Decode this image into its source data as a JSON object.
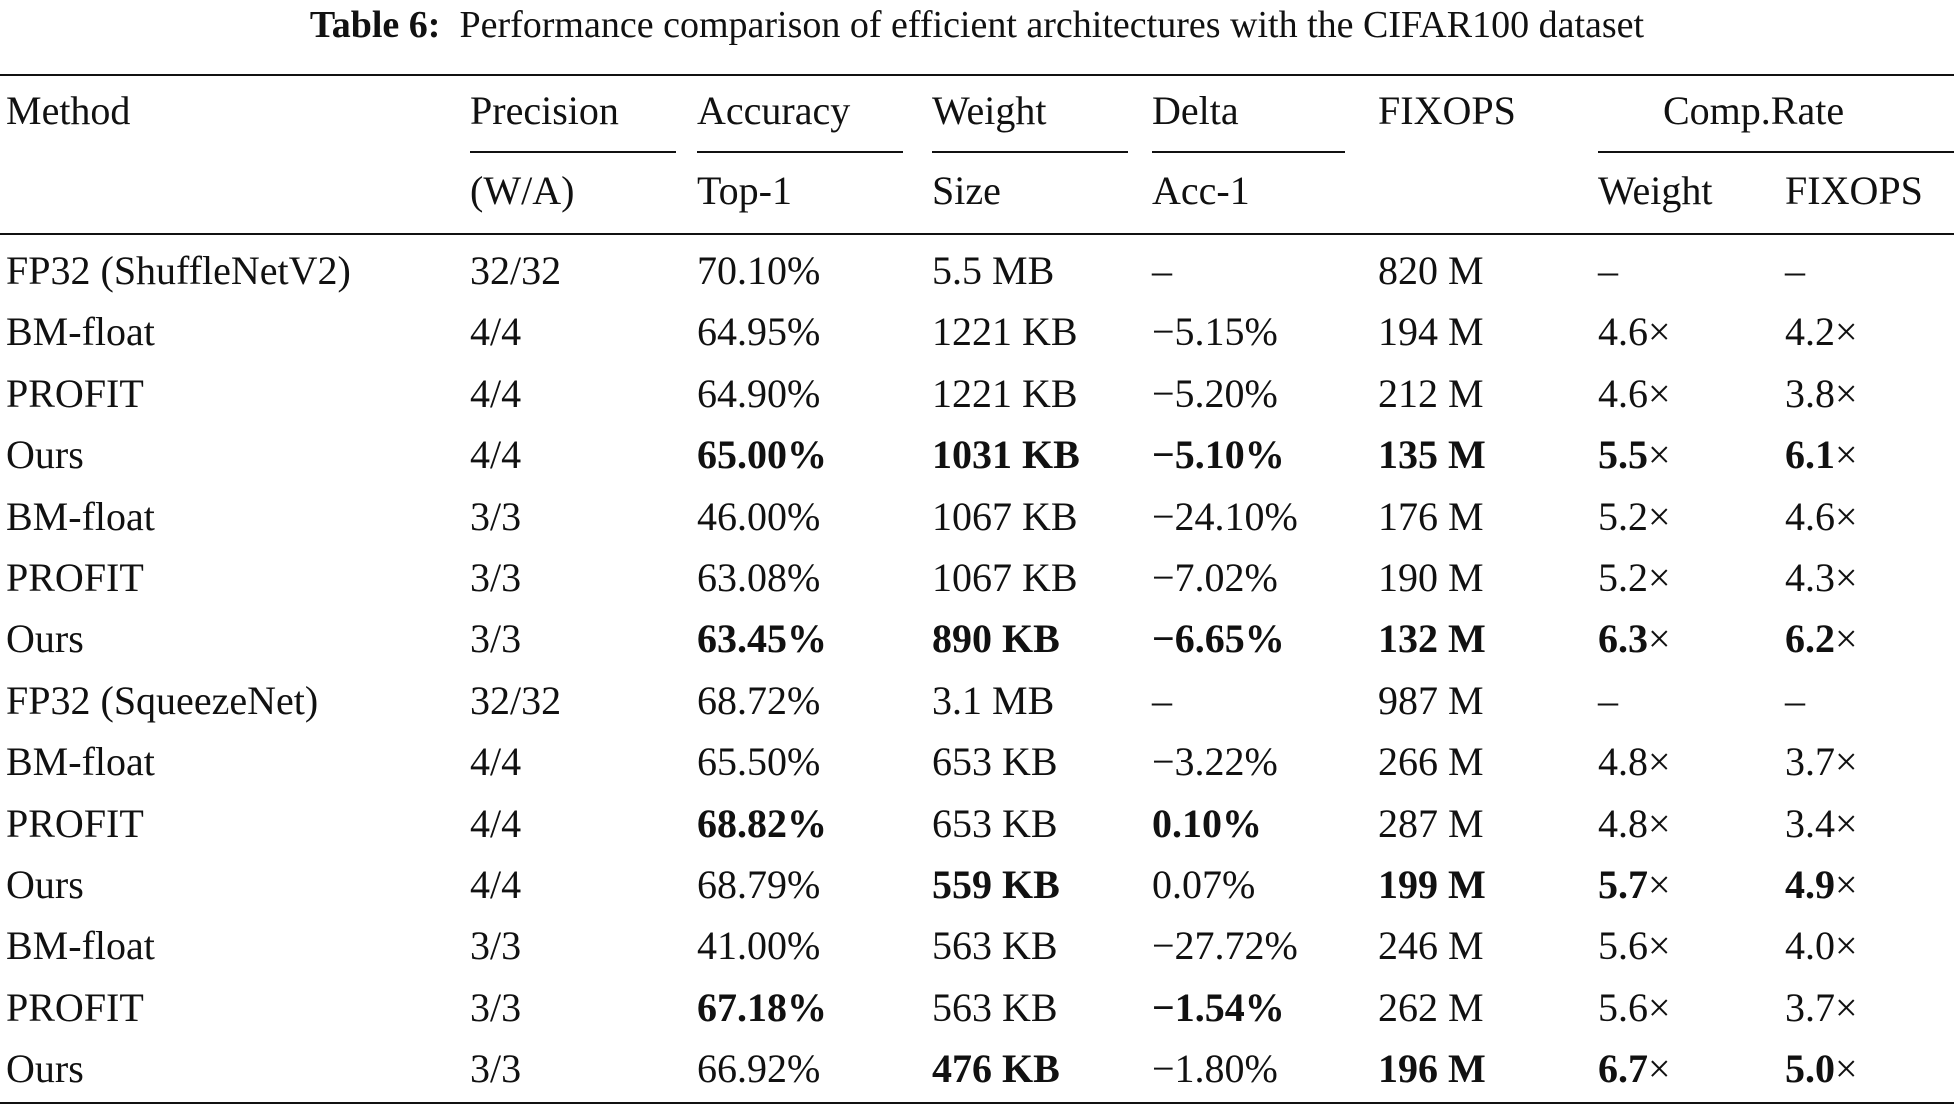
{
  "caption": {
    "label": "Table 6:",
    "text": "Performance comparison of efficient architectures with the CIFAR100 dataset"
  },
  "header": {
    "row1": [
      "Method",
      "Precision",
      "Accuracy",
      "Weight",
      "Delta",
      "FIXOPS",
      "Comp.Rate"
    ],
    "row2": [
      "(W/A)",
      "Top-1",
      "Size",
      "Acc-1",
      "Weight",
      "FIXOPS"
    ]
  },
  "rows": [
    {
      "method": "FP32 (ShuffleNetV2)",
      "precision": "32/32",
      "acc": "70.10%",
      "size": "5.5 MB",
      "delta": "–",
      "fixops": "820 M",
      "cr_w": "–",
      "cr_f": "–"
    },
    {
      "method": "BM-float",
      "precision": "4/4",
      "acc": "64.95%",
      "size": "1221 KB",
      "delta": "−5.15%",
      "fixops": "194 M",
      "cr_w": "4.6",
      "cr_f": "4.2"
    },
    {
      "method": "PROFIT",
      "precision": "4/4",
      "acc": "64.90%",
      "size": "1221 KB",
      "delta": "−5.20%",
      "fixops": "212 M",
      "cr_w": "4.6",
      "cr_f": "3.8"
    },
    {
      "method": "Ours",
      "precision": "4/4",
      "acc": "65.00%",
      "size": "1031 KB",
      "delta": "−5.10%",
      "fixops": "135 M",
      "cr_w": "5.5",
      "cr_f": "6.1"
    },
    {
      "method": "BM-float",
      "precision": "3/3",
      "acc": "46.00%",
      "size": "1067 KB",
      "delta": "−24.10%",
      "fixops": "176 M",
      "cr_w": "5.2",
      "cr_f": "4.6"
    },
    {
      "method": "PROFIT",
      "precision": "3/3",
      "acc": "63.08%",
      "size": "1067 KB",
      "delta": "−7.02%",
      "fixops": "190 M",
      "cr_w": "5.2",
      "cr_f": "4.3"
    },
    {
      "method": "Ours",
      "precision": "3/3",
      "acc": "63.45%",
      "size": "890 KB",
      "delta": "−6.65%",
      "fixops": "132 M",
      "cr_w": "6.3",
      "cr_f": "6.2"
    },
    {
      "method": "FP32 (SqueezeNet)",
      "precision": "32/32",
      "acc": "68.72%",
      "size": "3.1 MB",
      "delta": "–",
      "fixops": "987 M",
      "cr_w": "–",
      "cr_f": "–"
    },
    {
      "method": "BM-float",
      "precision": "4/4",
      "acc": "65.50%",
      "size": "653 KB",
      "delta": "−3.22%",
      "fixops": "266 M",
      "cr_w": "4.8",
      "cr_f": "3.7"
    },
    {
      "method": "PROFIT",
      "precision": "4/4",
      "acc": "68.82%",
      "size": "653 KB",
      "delta": "0.10%",
      "fixops": "287 M",
      "cr_w": "4.8",
      "cr_f": "3.4"
    },
    {
      "method": "Ours",
      "precision": "4/4",
      "acc": "68.79%",
      "size": "559 KB",
      "delta": "0.07%",
      "fixops": "199 M",
      "cr_w": "5.7",
      "cr_f": "4.9"
    },
    {
      "method": "BM-float",
      "precision": "3/3",
      "acc": "41.00%",
      "size": "563 KB",
      "delta": "−27.72%",
      "fixops": "246 M",
      "cr_w": "5.6",
      "cr_f": "4.0"
    },
    {
      "method": "PROFIT",
      "precision": "3/3",
      "acc": "67.18%",
      "size": "563 KB",
      "delta": "−1.54%",
      "fixops": "262 M",
      "cr_w": "5.6",
      "cr_f": "3.7"
    },
    {
      "method": "Ours",
      "precision": "3/3",
      "acc": "66.92%",
      "size": "476 KB",
      "delta": "−1.80%",
      "fixops": "196 M",
      "cr_w": "6.7",
      "cr_f": "5.0"
    }
  ],
  "times_symbol": "×",
  "bold_cells": {
    "3": [
      "acc",
      "size",
      "delta",
      "fixops",
      "cr_w",
      "cr_f"
    ],
    "6": [
      "acc",
      "size",
      "delta",
      "fixops",
      "cr_w",
      "cr_f"
    ],
    "9": [
      "acc",
      "delta"
    ],
    "10": [
      "size",
      "fixops",
      "cr_w",
      "cr_f"
    ],
    "12": [
      "acc",
      "delta"
    ],
    "13": [
      "size",
      "fixops",
      "cr_w",
      "cr_f"
    ]
  }
}
